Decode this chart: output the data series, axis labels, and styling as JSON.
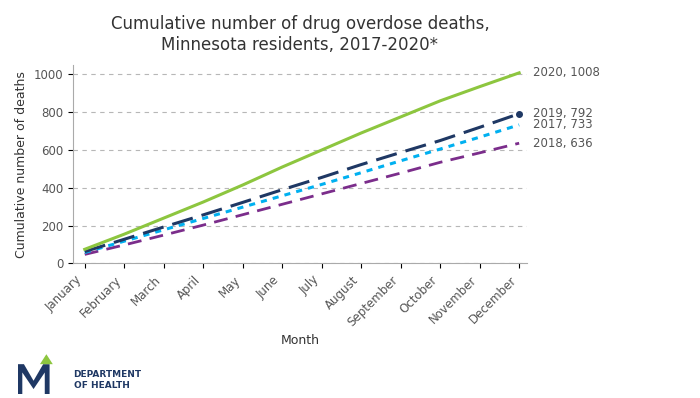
{
  "title": "Cumulative number of drug overdose deaths,\nMinnesota residents, 2017-2020*",
  "xlabel": "Month",
  "ylabel": "Cumulative number of deaths",
  "months": [
    "January",
    "February",
    "March",
    "April",
    "May",
    "June",
    "July",
    "August",
    "September",
    "October",
    "November",
    "December"
  ],
  "series": {
    "2020": {
      "values": [
        75,
        155,
        240,
        325,
        415,
        510,
        600,
        690,
        775,
        860,
        935,
        1008
      ],
      "color": "#8DC63F",
      "zorder": 5
    },
    "2019": {
      "values": [
        63,
        128,
        193,
        257,
        323,
        390,
        455,
        523,
        587,
        650,
        720,
        792
      ],
      "color": "#1F3864",
      "zorder": 4
    },
    "2017": {
      "values": [
        58,
        118,
        178,
        238,
        298,
        358,
        418,
        480,
        543,
        605,
        668,
        733
      ],
      "color": "#00B0F0",
      "zorder": 3
    },
    "2018": {
      "values": [
        48,
        98,
        150,
        203,
        258,
        313,
        368,
        423,
        478,
        535,
        585,
        636
      ],
      "color": "#7B2D8B",
      "zorder": 2
    }
  },
  "ylim": [
    0,
    1050
  ],
  "yticks": [
    0,
    200,
    400,
    600,
    800,
    1000
  ],
  "background_color": "#ffffff",
  "grid_color": "#b0b0b0",
  "title_fontsize": 12,
  "axis_label_fontsize": 9,
  "tick_fontsize": 8.5,
  "annotation_fontsize": 8.5
}
